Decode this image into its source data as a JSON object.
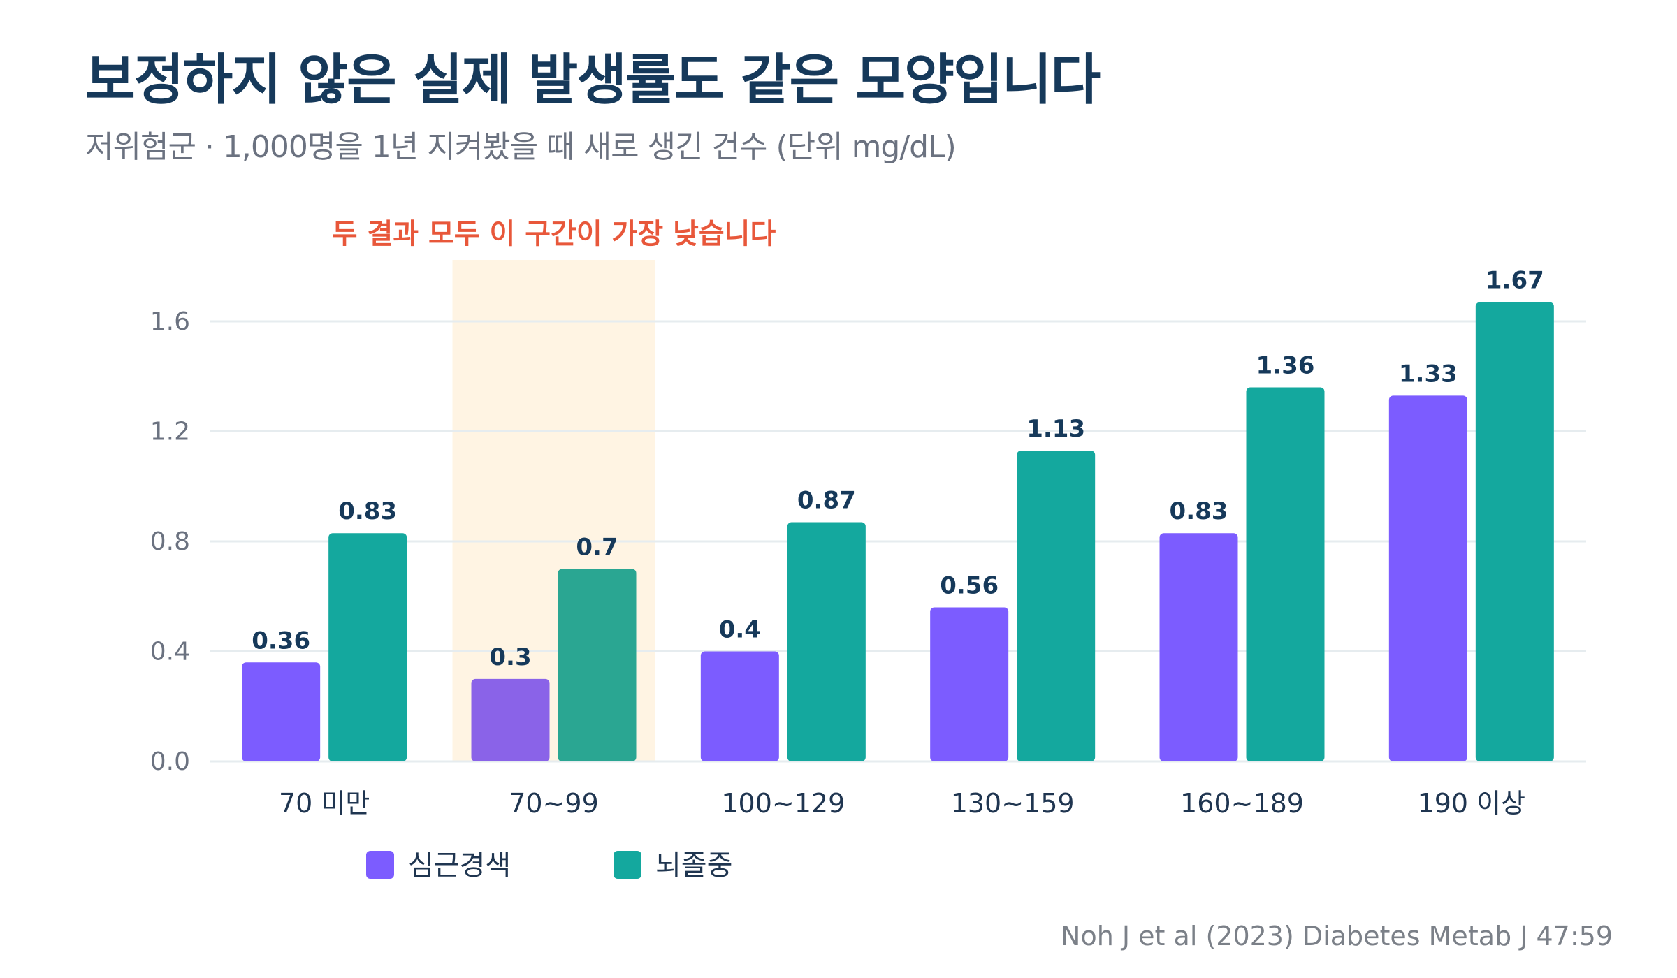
{
  "title": "보정하지 않은 실제 발생률도 같은 모양입니다",
  "subtitle": "저위험군 · 1,000명을 1년 지켜봤을 때 새로 생긴 건수 (단위 mg/dL)",
  "source": "Noh J et al (2023) Diabetes Metab J 47:59",
  "colors": {
    "series_a": "#7c5cff",
    "series_a_dim": "#8a63e8",
    "series_b": "#14a89e",
    "series_b_dim": "#2aa692",
    "highlight_band": "#fff4e3",
    "annotation": "#e8573a",
    "grid": "#e6ecef",
    "title": "#16395a"
  },
  "chart_data": {
    "type": "bar",
    "title": "보정하지 않은 실제 발생률도 같은 모양입니다",
    "subtitle": "저위험군 · 1,000명을 1년 지켜봤을 때 새로 생긴 건수 (단위 mg/dL)",
    "categories": [
      "70 미만",
      "70~99",
      "100~129",
      "130~159",
      "160~189",
      "190 이상"
    ],
    "series": [
      {
        "name": "심근경색",
        "values": [
          0.36,
          0.3,
          0.4,
          0.56,
          0.83,
          1.33
        ]
      },
      {
        "name": "뇌졸중",
        "values": [
          0.83,
          0.7,
          0.87,
          1.13,
          1.36,
          1.67
        ]
      }
    ],
    "value_labels": [
      [
        "0.36",
        "0.3",
        "0.4",
        "0.56",
        "0.83",
        "1.33"
      ],
      [
        "0.83",
        "0.7",
        "0.87",
        "1.13",
        "1.36",
        "1.67"
      ]
    ],
    "yticks": [
      "0.0",
      "0.4",
      "0.8",
      "1.2",
      "1.6"
    ],
    "ytick_values": [
      0,
      0.4,
      0.8,
      1.2,
      1.6
    ],
    "ylim": [
      0,
      1.6
    ],
    "grid": true,
    "legend_position": "bottom-left",
    "highlight": {
      "category": "70~99",
      "text": "두 결과 모두 이 구간이 가장 낮습니다"
    }
  }
}
